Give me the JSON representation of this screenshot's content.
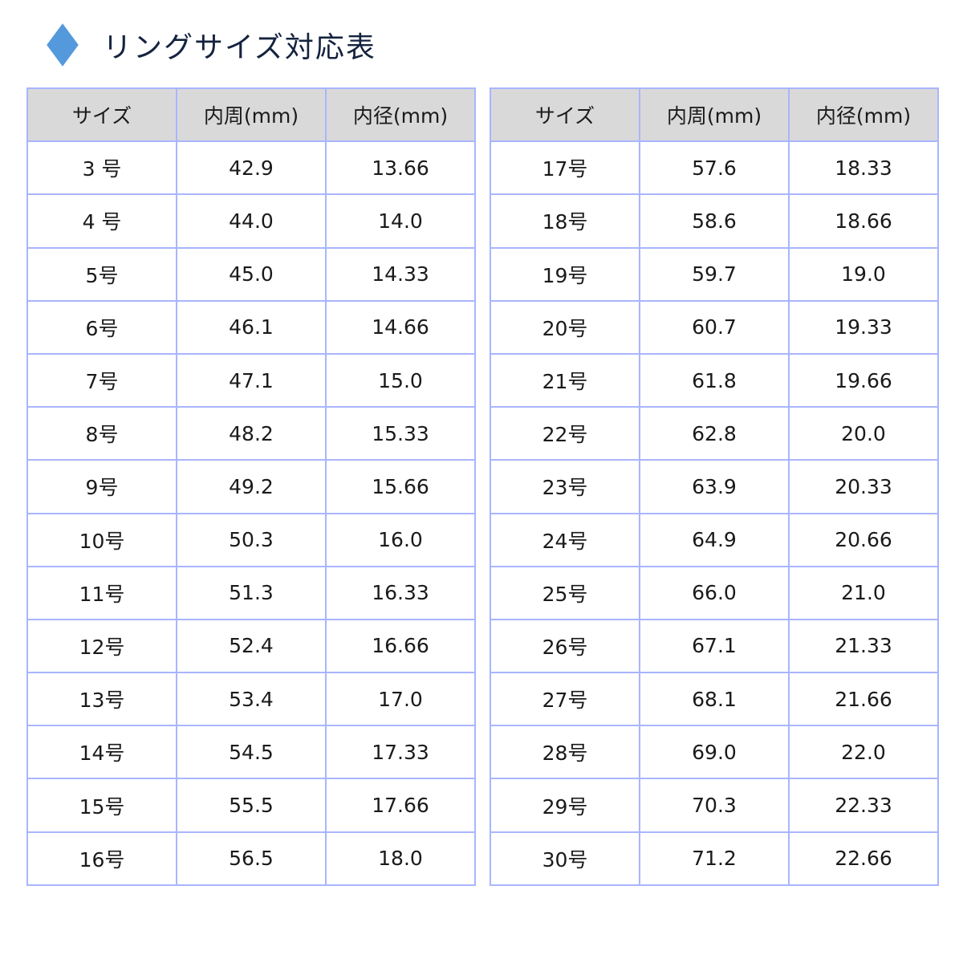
{
  "title": "リングサイズ対応表",
  "colors": {
    "diamond": "#5599dd",
    "border": "#a9b5ff",
    "header_bg": "#d9d9d9"
  },
  "headers": [
    "サイズ",
    "内周(mm)",
    "内径(mm)"
  ],
  "tables": [
    {
      "rows": [
        [
          "3 号",
          "42.9",
          "13.66"
        ],
        [
          "4 号",
          "44.0",
          "14.0"
        ],
        [
          "5号",
          "45.0",
          "14.33"
        ],
        [
          "6号",
          "46.1",
          "14.66"
        ],
        [
          "7号",
          "47.1",
          "15.0"
        ],
        [
          "8号",
          "48.2",
          "15.33"
        ],
        [
          "9号",
          "49.2",
          "15.66"
        ],
        [
          "10号",
          "50.3",
          "16.0"
        ],
        [
          "11号",
          "51.3",
          "16.33"
        ],
        [
          "12号",
          "52.4",
          "16.66"
        ],
        [
          "13号",
          "53.4",
          "17.0"
        ],
        [
          "14号",
          "54.5",
          "17.33"
        ],
        [
          "15号",
          "55.5",
          "17.66"
        ],
        [
          "16号",
          "56.5",
          "18.0"
        ]
      ]
    },
    {
      "rows": [
        [
          "17号",
          "57.6",
          "18.33"
        ],
        [
          "18号",
          "58.6",
          "18.66"
        ],
        [
          "19号",
          "59.7",
          "19.0"
        ],
        [
          "20号",
          "60.7",
          "19.33"
        ],
        [
          "21号",
          "61.8",
          "19.66"
        ],
        [
          "22号",
          "62.8",
          "20.0"
        ],
        [
          "23号",
          "63.9",
          "20.33"
        ],
        [
          "24号",
          "64.9",
          "20.66"
        ],
        [
          "25号",
          "66.0",
          "21.0"
        ],
        [
          "26号",
          "67.1",
          "21.33"
        ],
        [
          "27号",
          "68.1",
          "21.66"
        ],
        [
          "28号",
          "69.0",
          "22.0"
        ],
        [
          "29号",
          "70.3",
          "22.33"
        ],
        [
          "30号",
          "71.2",
          "22.66"
        ]
      ]
    }
  ]
}
